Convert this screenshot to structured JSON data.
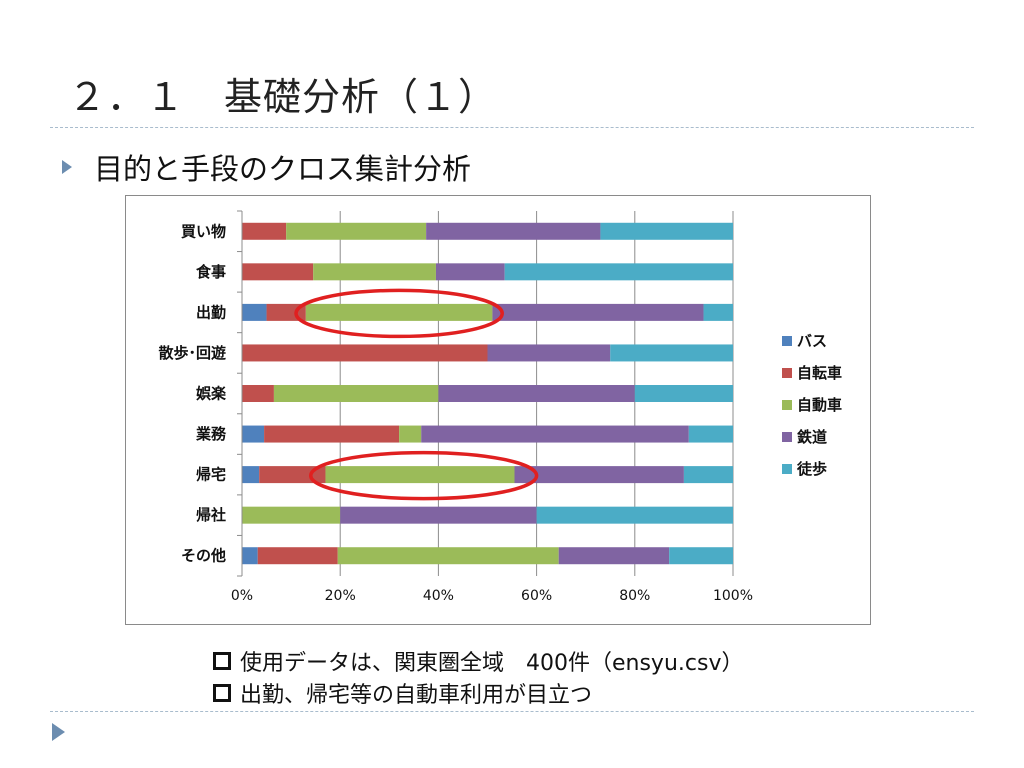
{
  "slide": {
    "title": "２．１　基礎分析（１）",
    "subtitle": "目的と手段のクロス集計分析",
    "notes": [
      "使用データは、関東圏全域　400件（ensyu.csv）",
      "出勤、帰宅等の自動車利用が目立つ"
    ]
  },
  "chart_data": {
    "type": "bar",
    "orientation": "horizontal",
    "stacked": "percent",
    "categories": [
      "買い物",
      "食事",
      "出勤",
      "散歩･回遊",
      "娯楽",
      "業務",
      "帰宅",
      "帰社",
      "その他"
    ],
    "series": [
      {
        "name": "バス",
        "color": "#4f81bd",
        "values": [
          0,
          0,
          5,
          0,
          0,
          4.5,
          3.5,
          0,
          3.2
        ]
      },
      {
        "name": "自転車",
        "color": "#c0504d",
        "values": [
          9,
          14.5,
          8,
          50,
          6.5,
          27.5,
          13.5,
          0,
          16.3
        ]
      },
      {
        "name": "自動車",
        "color": "#9bbb59",
        "values": [
          28.5,
          25,
          38,
          0,
          33.5,
          4.5,
          38.5,
          20,
          45
        ]
      },
      {
        "name": "鉄道",
        "color": "#8064a2",
        "values": [
          35.5,
          14,
          43,
          25,
          40,
          54.5,
          34.5,
          40,
          22.5
        ]
      },
      {
        "name": "徒歩",
        "color": "#4bacc6",
        "values": [
          27,
          46.5,
          6,
          25,
          20,
          9,
          10,
          40,
          13
        ]
      }
    ],
    "x_ticks": [
      "0%",
      "20%",
      "40%",
      "60%",
      "80%",
      "100%"
    ],
    "xlim": [
      0,
      100
    ],
    "grid": true,
    "legend": "right",
    "highlights": [
      {
        "category": "出勤",
        "range": [
          11,
          53
        ],
        "color": "#e02020"
      },
      {
        "category": "帰宅",
        "range": [
          14,
          60
        ],
        "color": "#e02020"
      }
    ]
  }
}
